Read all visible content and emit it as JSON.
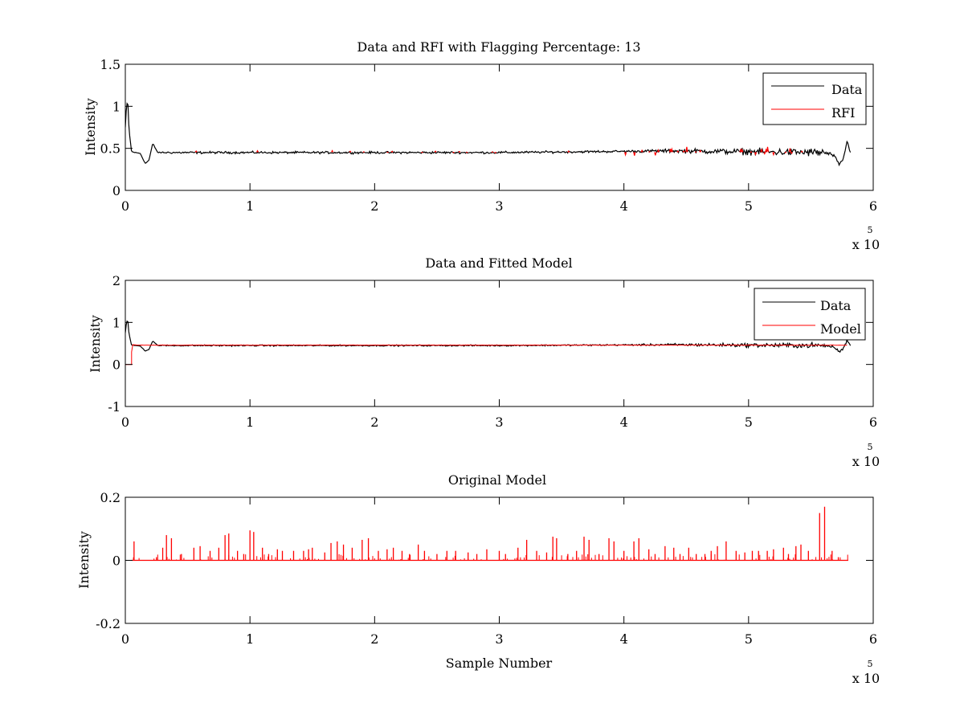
{
  "colors": {
    "data": "#000000",
    "rfi": "#ff0000",
    "model": "#ff0000",
    "axis": "#000000",
    "background": "#ffffff"
  },
  "chart_data": [
    {
      "type": "line",
      "title": "Data and RFI with Flagging Percentage: 13",
      "xlabel": "",
      "ylabel": "Intensity",
      "xlim": [
        0,
        600000
      ],
      "ylim": [
        0,
        1.5
      ],
      "xticks": [
        0,
        1,
        2,
        3,
        4,
        5,
        6
      ],
      "yticks": [
        0,
        0.5,
        1,
        1.5
      ],
      "xtick_labels": [
        "0",
        "1",
        "2",
        "3",
        "4",
        "5",
        "6"
      ],
      "ytick_labels": [
        "0",
        "0.5",
        "1",
        "1.5"
      ],
      "exponent_label": "x 10",
      "exponent": "5",
      "legend": {
        "position": "top-right",
        "entries": [
          "Data",
          "RFI"
        ]
      },
      "series": [
        {
          "name": "Data",
          "color": "#000000",
          "style": "noisy-baseline",
          "x": [
            0,
            1000,
            2000,
            3000,
            5000,
            8000,
            12000,
            16000,
            19000,
            22000,
            26000,
            60000,
            300000,
            440000,
            560000,
            568000,
            573000,
            576000,
            579000,
            582000
          ],
          "y": [
            0.75,
            1.02,
            1.05,
            0.72,
            0.46,
            0.45,
            0.44,
            0.32,
            0.36,
            0.56,
            0.45,
            0.45,
            0.45,
            0.47,
            0.45,
            0.42,
            0.3,
            0.38,
            0.58,
            0.45
          ],
          "noise": 0.008,
          "noise_grows_after": 400000,
          "noise_max": 0.035
        },
        {
          "name": "RFI",
          "color": "#ff0000",
          "style": "flagged-spikes",
          "range": [
            25000,
            565000
          ],
          "baseline": 0.455,
          "density_low": 0.06,
          "density_high": 0.3,
          "density_ramp_start": 400000,
          "max_amplitude": 0.11
        }
      ]
    },
    {
      "type": "line",
      "title": "Data and Fitted Model",
      "xlabel": "",
      "ylabel": "Intensity",
      "xlim": [
        0,
        600000
      ],
      "ylim": [
        -1,
        2
      ],
      "xticks": [
        0,
        1,
        2,
        3,
        4,
        5,
        6
      ],
      "yticks": [
        -1,
        0,
        1,
        2
      ],
      "xtick_labels": [
        "0",
        "1",
        "2",
        "3",
        "4",
        "5",
        "6"
      ],
      "ytick_labels": [
        "-1",
        "0",
        "1",
        "2"
      ],
      "exponent_label": "x 10",
      "exponent": "5",
      "legend": {
        "position": "top-right",
        "entries": [
          "Data",
          "Model"
        ]
      },
      "series": [
        {
          "name": "Data",
          "color": "#000000",
          "style": "noisy-baseline",
          "x": [
            0,
            1000,
            2000,
            3000,
            5000,
            8000,
            12000,
            16000,
            19000,
            22000,
            26000,
            60000,
            300000,
            440000,
            560000,
            568000,
            573000,
            576000,
            579000,
            582000
          ],
          "y": [
            0.75,
            1.02,
            1.05,
            0.72,
            0.46,
            0.45,
            0.44,
            0.32,
            0.36,
            0.56,
            0.45,
            0.45,
            0.45,
            0.47,
            0.45,
            0.42,
            0.3,
            0.38,
            0.58,
            0.45
          ],
          "noise": 0.01,
          "noise_grows_after": 400000,
          "noise_max": 0.045
        },
        {
          "name": "Model",
          "color": "#ff0000",
          "style": "step-then-flat",
          "x": [
            0,
            5000,
            5001,
            6000,
            10000,
            580000
          ],
          "y": [
            0,
            0,
            0.3,
            0.47,
            0.46,
            0.46
          ],
          "noise": 0.004
        }
      ]
    },
    {
      "type": "line",
      "title": "Original Model",
      "xlabel": "Sample Number",
      "ylabel": "Intensity",
      "xlim": [
        0,
        600000
      ],
      "ylim": [
        -0.2,
        0.2
      ],
      "xticks": [
        0,
        1,
        2,
        3,
        4,
        5,
        6
      ],
      "yticks": [
        -0.2,
        0,
        0.2
      ],
      "xtick_labels": [
        "0",
        "1",
        "2",
        "3",
        "4",
        "5",
        "6"
      ],
      "ytick_labels": [
        "-0.2",
        "0",
        "0.2"
      ],
      "exponent_label": "x 10",
      "exponent": "5",
      "legend": null,
      "series": [
        {
          "name": "Model",
          "color": "#ff0000",
          "style": "sparse-spikes",
          "range": [
            5000,
            580000
          ],
          "baseline": 0,
          "spikes": [
            [
              7000,
              0.06
            ],
            [
              25000,
              0.01
            ],
            [
              30000,
              0.04
            ],
            [
              33000,
              0.08
            ],
            [
              37000,
              0.07
            ],
            [
              45000,
              0.02
            ],
            [
              55000,
              0.04
            ],
            [
              60000,
              0.045
            ],
            [
              68000,
              0.03
            ],
            [
              75000,
              0.04
            ],
            [
              80000,
              0.08
            ],
            [
              83000,
              0.085
            ],
            [
              90000,
              0.03
            ],
            [
              95000,
              0.02
            ],
            [
              100000,
              0.095
            ],
            [
              103000,
              0.09
            ],
            [
              110000,
              0.04
            ],
            [
              115000,
              0.02
            ],
            [
              122000,
              0.035
            ],
            [
              126000,
              0.03
            ],
            [
              135000,
              0.03
            ],
            [
              143000,
              0.03
            ],
            [
              147000,
              0.035
            ],
            [
              150000,
              0.04
            ],
            [
              160000,
              0.025
            ],
            [
              165000,
              0.055
            ],
            [
              170000,
              0.06
            ],
            [
              175000,
              0.05
            ],
            [
              182000,
              0.04
            ],
            [
              190000,
              0.065
            ],
            [
              195000,
              0.07
            ],
            [
              203000,
              0.03
            ],
            [
              210000,
              0.035
            ],
            [
              215000,
              0.04
            ],
            [
              222000,
              0.03
            ],
            [
              228000,
              0.02
            ],
            [
              235000,
              0.05
            ],
            [
              240000,
              0.03
            ],
            [
              250000,
              0.02
            ],
            [
              258000,
              0.03
            ],
            [
              265000,
              0.03
            ],
            [
              275000,
              0.025
            ],
            [
              282000,
              0.02
            ],
            [
              290000,
              0.035
            ],
            [
              300000,
              0.03
            ],
            [
              305000,
              0.02
            ],
            [
              315000,
              0.04
            ],
            [
              322000,
              0.065
            ],
            [
              330000,
              0.03
            ],
            [
              338000,
              0.025
            ],
            [
              343000,
              0.075
            ],
            [
              346000,
              0.07
            ],
            [
              355000,
              0.02
            ],
            [
              362000,
              0.03
            ],
            [
              368000,
              0.075
            ],
            [
              372000,
              0.065
            ],
            [
              380000,
              0.02
            ],
            [
              388000,
              0.07
            ],
            [
              392000,
              0.06
            ],
            [
              400000,
              0.03
            ],
            [
              408000,
              0.06
            ],
            [
              412000,
              0.07
            ],
            [
              420000,
              0.035
            ],
            [
              425000,
              0.02
            ],
            [
              433000,
              0.045
            ],
            [
              440000,
              0.04
            ],
            [
              445000,
              0.02
            ],
            [
              452000,
              0.04
            ],
            [
              458000,
              0.02
            ],
            [
              465000,
              0.02
            ],
            [
              470000,
              0.03
            ],
            [
              475000,
              0.045
            ],
            [
              482000,
              0.06
            ],
            [
              490000,
              0.03
            ],
            [
              497000,
              0.025
            ],
            [
              503000,
              0.03
            ],
            [
              508000,
              0.03
            ],
            [
              515000,
              0.03
            ],
            [
              520000,
              0.035
            ],
            [
              528000,
              0.04
            ],
            [
              532000,
              0.02
            ],
            [
              538000,
              0.045
            ],
            [
              542000,
              0.05
            ],
            [
              548000,
              0.03
            ],
            [
              557000,
              0.15
            ],
            [
              561000,
              0.17
            ],
            [
              567000,
              0.03
            ],
            [
              572000,
              0.01
            ]
          ],
          "small_spike_density": 0.35,
          "small_spike_max": 0.02
        }
      ]
    }
  ]
}
